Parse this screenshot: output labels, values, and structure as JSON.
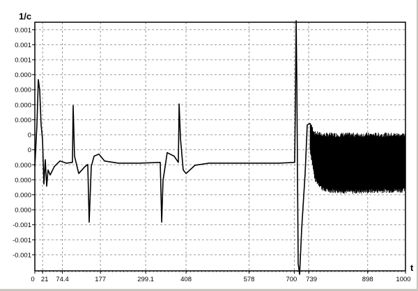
{
  "chart_data": {
    "type": "line",
    "title": "",
    "xlabel": "t",
    "ylabel": "1/c",
    "xlim": [
      0,
      1000
    ],
    "ylim": [
      -0.000857,
      0.0008
    ],
    "grid": true,
    "x_ticks": [
      {
        "value": 0,
        "label": "0"
      },
      {
        "value": 21,
        "label": "21"
      },
      {
        "value": 74.4,
        "label": "74.4"
      },
      {
        "value": 177,
        "label": "177"
      },
      {
        "value": 299.1,
        "label": "299.1"
      },
      {
        "value": 408,
        "label": "408"
      },
      {
        "value": 578,
        "label": "578"
      },
      {
        "value": 700,
        "label": "700"
      },
      {
        "value": 739,
        "label": "739"
      },
      {
        "value": 898,
        "label": "898"
      },
      {
        "value": 1000,
        "label": "1000"
      }
    ],
    "y_ticks": [
      {
        "value": 0.00075,
        "label": "0.001"
      },
      {
        "value": 0.00065,
        "label": "0.001"
      },
      {
        "value": 0.00055,
        "label": "0.001"
      },
      {
        "value": 0.00045,
        "label": "0.000"
      },
      {
        "value": 0.00035,
        "label": "0.000"
      },
      {
        "value": 0.00025,
        "label": "0.000"
      },
      {
        "value": 0.00015,
        "label": "0.000"
      },
      {
        "value": 5e-05,
        "label": "0"
      },
      {
        "value": -5e-05,
        "label": "0"
      },
      {
        "value": -0.00015,
        "label": "0.000"
      },
      {
        "value": -0.00025,
        "label": "0.000"
      },
      {
        "value": -0.00035,
        "label": "0.000"
      },
      {
        "value": -0.00045,
        "label": "0.000"
      },
      {
        "value": -0.00055,
        "label": "-0.001"
      },
      {
        "value": -0.00065,
        "label": "-0.001"
      },
      {
        "value": -0.00075,
        "label": "-0.001"
      }
    ],
    "series": [
      {
        "color": "#000000",
        "x": [
          0,
          5.6,
          9.4,
          13.2,
          16.9,
          20.7,
          24.4,
          28.2,
          32,
          35.7,
          41.4,
          52.6,
          67.7,
          84.6,
          101.5,
          103.4,
          107.2,
          118.4,
          135.4,
          142.9,
          146.6,
          152.3,
          159.8,
          173,
          188,
          225.6,
          282,
          338.4,
          342.2,
          345.9,
          357.2,
          376,
          387.3,
          389.2,
          393,
          400.4,
          408,
          432.4,
          470,
          658,
          701.2,
          703.1,
          705,
          706.9,
          710.6,
          714.4,
          720,
          729.4,
          735,
          742.6,
          755.8
        ],
        "y": [
          -0.000162,
          0.000116,
          0.000417,
          0.000347,
          0.000116,
          2.3e-05,
          -0.000278,
          -0.000116,
          -0.000292,
          -0.000185,
          -0.000218,
          -0.000162,
          -0.000125,
          -0.000139,
          -0.000134,
          0.000245,
          -9.3e-05,
          -0.000208,
          -0.000162,
          -0.000148,
          -0.000532,
          -0.000162,
          -9.3e-05,
          -7.9e-05,
          -0.000125,
          -0.000139,
          -0.000139,
          -0.000134,
          -0.000532,
          -0.000255,
          -6.9e-05,
          -9.3e-05,
          -0.000134,
          0.000255,
          2.3e-05,
          -0.000185,
          -0.000208,
          -0.000153,
          -0.000139,
          -0.000139,
          -0.000134,
          0.000255,
          0.00081,
          0.000394,
          -0.00081,
          -0.00088,
          -0.000579,
          -0.000208,
          0.000116,
          0.000125,
          2.3e-05
        ]
      }
    ],
    "oscillation_band": {
      "x": [
        742.6,
        755.8,
        780,
        850,
        1000
      ],
      "upper": [
        0.000125,
        6e-05,
        5e-05,
        5e-05,
        5e-05
      ],
      "lower": [
        -5e-05,
        -0.00025,
        -0.00032,
        -0.00033,
        -0.00032
      ]
    }
  }
}
